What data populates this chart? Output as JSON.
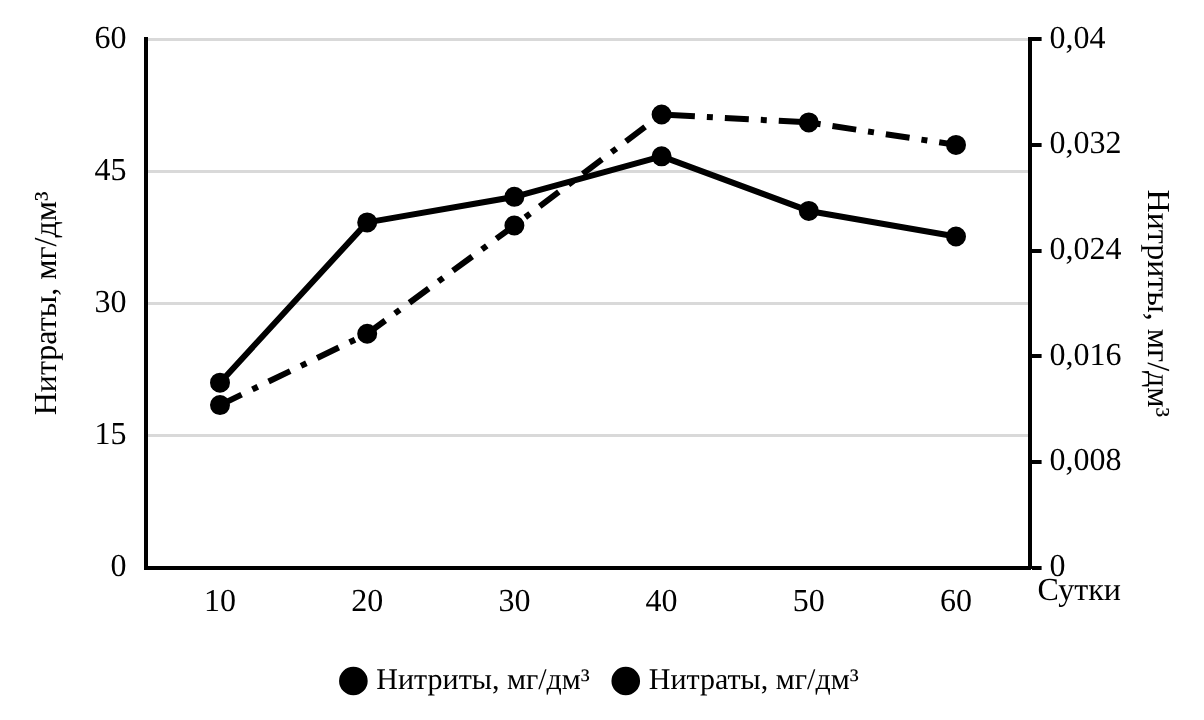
{
  "chart_data": {
    "type": "line",
    "xlabel": "Сутки",
    "ylabel": "Нитраты, мг/дм³",
    "y2label": "Нитриты, мг/дм³",
    "categories": [
      "10",
      "20",
      "30",
      "40",
      "50",
      "60"
    ],
    "series": [
      {
        "name": "Нитриты, мг/дм³",
        "color": "#000000",
        "axis": "y2",
        "line_style": "dashed",
        "values": [
          0.0123,
          0.0177,
          0.0259,
          0.0343,
          0.0337,
          0.032
        ]
      },
      {
        "name": "Нитраты, мг/дм³",
        "color": "#000000",
        "line_style": "solid",
        "values": [
          21,
          39.2,
          42.1,
          46.7,
          40.5,
          37.6
        ]
      }
    ],
    "ylim": [
      0,
      60
    ],
    "yticks": [
      0,
      15,
      30,
      45,
      60
    ],
    "y2lim": [
      0,
      0.04
    ],
    "y2ticks": [
      0,
      {
        "value": 0.008,
        "label": "0,008"
      },
      {
        "value": 0.016,
        "label": "0,016"
      },
      {
        "value": 0.024,
        "label": "0,024"
      },
      {
        "value": 0.032,
        "label": "0,032"
      },
      {
        "value": 0.04,
        "label": "0,04"
      }
    ],
    "grid": "y",
    "legend": "bottom",
    "marker": "circle"
  }
}
